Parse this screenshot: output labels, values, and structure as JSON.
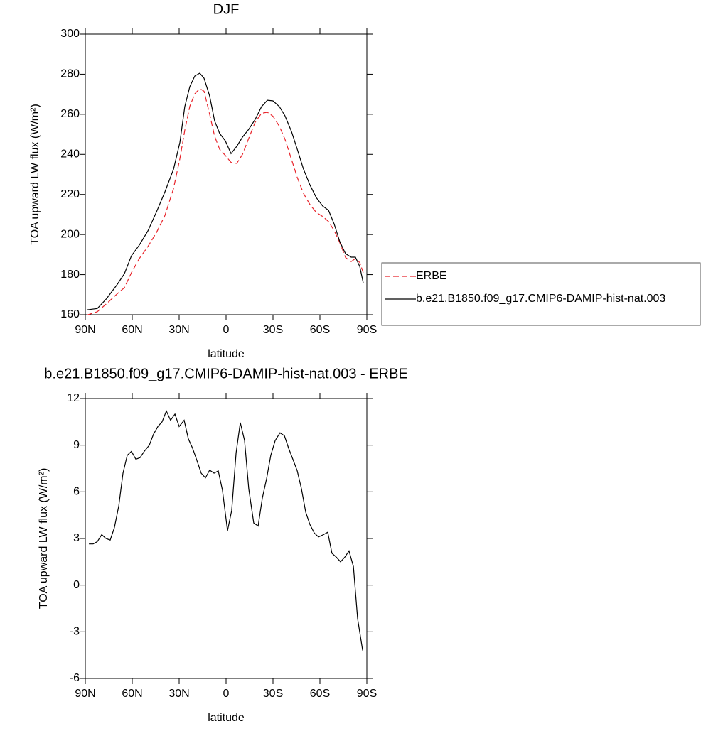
{
  "chart_data": [
    {
      "type": "line",
      "title": "DJF",
      "xlabel": "latitude",
      "ylabel": "TOA upward LW flux (W/m²)",
      "x": [
        89.1,
        82.3,
        76.4,
        69.5,
        65,
        60.5,
        55.5,
        50,
        44.5,
        39.1,
        33.6,
        29.5,
        26.4,
        23.2,
        20,
        16.8,
        14.1,
        10.5,
        7.3,
        4.1,
        0.5,
        -3.2,
        -6.8,
        -10.5,
        -14.5,
        -18.6,
        -22.7,
        -26.4,
        -30,
        -34.1,
        -37.7,
        -41.8,
        -45.5,
        -49.5,
        -53.6,
        -57.7,
        -61.8,
        -65.5,
        -69.1,
        -72.7,
        -76.4,
        -80,
        -82.7,
        -85.5,
        -87.7
      ],
      "series": [
        {
          "name": "ERBE",
          "color": "#e8232a",
          "dashed": true,
          "values": [
            159.8,
            161.5,
            165.5,
            170.5,
            173.5,
            181,
            188,
            194,
            201,
            209.5,
            223,
            238,
            252,
            264,
            270.2,
            272.8,
            271.5,
            260,
            249,
            242.5,
            239.5,
            236,
            235.5,
            240,
            248,
            256,
            260.5,
            261,
            259,
            254,
            247.5,
            237.5,
            228.5,
            220.5,
            215,
            211,
            209,
            206.5,
            202,
            196,
            188.5,
            186.5,
            188,
            186,
            181
          ]
        },
        {
          "name": "b.e21.B1850.f09_g17.CMIP6-DAMIP-hist-nat.003",
          "color": "#000000",
          "dashed": false,
          "values": [
            162.4,
            163.1,
            168,
            175.2,
            180.5,
            189.4,
            194.7,
            201.8,
            211.3,
            221.3,
            232.6,
            246.1,
            263.8,
            273.8,
            279.1,
            280.5,
            278,
            269.1,
            256.7,
            250.4,
            246.8,
            240.4,
            244,
            248.6,
            252.5,
            257.4,
            263.8,
            267,
            266.7,
            263.8,
            259.2,
            251.4,
            242.6,
            232.6,
            224.8,
            218.4,
            214.2,
            212.1,
            205.3,
            196.5,
            190.4,
            188.7,
            188.7,
            184,
            175.9
          ]
        }
      ],
      "xlim": [
        90,
        -90
      ],
      "xticks": [
        {
          "value": 90,
          "label": "90N"
        },
        {
          "value": 60,
          "label": "60N"
        },
        {
          "value": 30,
          "label": "30N"
        },
        0,
        {
          "value": -30,
          "label": "30S"
        },
        {
          "value": -60,
          "label": "60S"
        },
        {
          "value": -90,
          "label": "90S"
        }
      ],
      "ylim": [
        160,
        300
      ],
      "yticks": [
        160,
        180,
        200,
        220,
        240,
        260,
        280,
        300
      ],
      "legend": "outside-right"
    },
    {
      "type": "line",
      "title": "b.e21.B1850.f09_g17.CMIP6-DAMIP-hist-nat.003 - ERBE",
      "xlabel": "latitude",
      "ylabel": "TOA upward LW flux (W/m²)",
      "x": [
        87.7,
        85,
        82.3,
        79.5,
        76.8,
        74.1,
        71.4,
        68.6,
        65.9,
        63.2,
        60.5,
        57.7,
        55,
        52.3,
        49.1,
        46.4,
        43.6,
        40.9,
        38.2,
        35.5,
        32.7,
        30,
        26.8,
        24.1,
        21.4,
        18.6,
        15.9,
        13.2,
        10.5,
        7.7,
        5,
        2.3,
        -0.9,
        -3.6,
        -6.4,
        -9.1,
        -11.8,
        -14.5,
        -17.7,
        -20.5,
        -23.2,
        -25.9,
        -28.6,
        -31.4,
        -34.5,
        -37.3,
        -40,
        -42.7,
        -45.5,
        -48.2,
        -50.9,
        -53.6,
        -56.4,
        -59.1,
        -62.3,
        -65,
        -67.7,
        -70.5,
        -73.2,
        -75.9,
        -78.6,
        -81.4,
        -84.1,
        -87.3
      ],
      "values": [
        2.65,
        2.65,
        2.8,
        3.25,
        3.0,
        2.9,
        3.7,
        5.1,
        7.2,
        8.35,
        8.6,
        8.1,
        8.2,
        8.6,
        9.0,
        9.7,
        10.2,
        10.5,
        11.2,
        10.6,
        11.0,
        10.2,
        10.6,
        9.4,
        8.8,
        8.0,
        7.2,
        6.9,
        7.4,
        7.2,
        7.35,
        6.1,
        3.5,
        4.8,
        8.5,
        10.45,
        9.3,
        6.2,
        4.0,
        3.8,
        5.6,
        6.85,
        8.35,
        9.3,
        9.8,
        9.6,
        8.8,
        8.1,
        7.35,
        6.2,
        4.7,
        3.9,
        3.35,
        3.1,
        3.25,
        3.4,
        2.05,
        1.8,
        1.5,
        1.8,
        2.2,
        1.2,
        -2.15,
        -4.2
      ],
      "color": "#000000",
      "xlim": [
        90,
        -90
      ],
      "xticks": [
        {
          "value": 90,
          "label": "90N"
        },
        {
          "value": 60,
          "label": "60N"
        },
        {
          "value": 30,
          "label": "30N"
        },
        0,
        {
          "value": -30,
          "label": "30S"
        },
        {
          "value": -60,
          "label": "60S"
        },
        {
          "value": -90,
          "label": "90S"
        }
      ],
      "ylim": [
        -6,
        12
      ],
      "yticks": [
        -6,
        -3,
        0,
        3,
        6,
        9,
        12
      ]
    }
  ]
}
